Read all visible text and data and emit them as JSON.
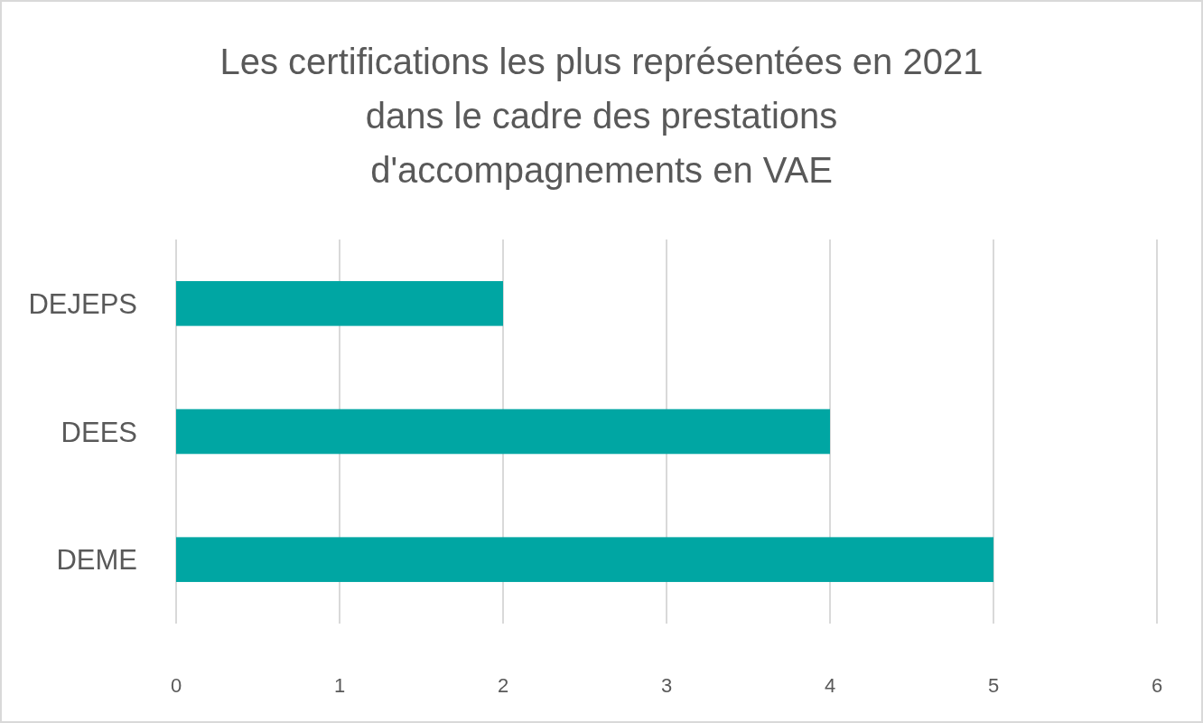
{
  "chart_data": {
    "type": "bar",
    "orientation": "horizontal",
    "title": "Les certifications les plus représentées en 2021\ndans le cadre des prestations\nd'accompagnements en VAE",
    "categories": [
      "DEJEPS",
      "DEES",
      "DEME"
    ],
    "values": [
      2,
      4,
      5
    ],
    "color": "#00a6a3",
    "xlim": [
      0,
      6
    ],
    "xticks": [
      0,
      1,
      2,
      3,
      4,
      5,
      6
    ],
    "grid": "x"
  }
}
